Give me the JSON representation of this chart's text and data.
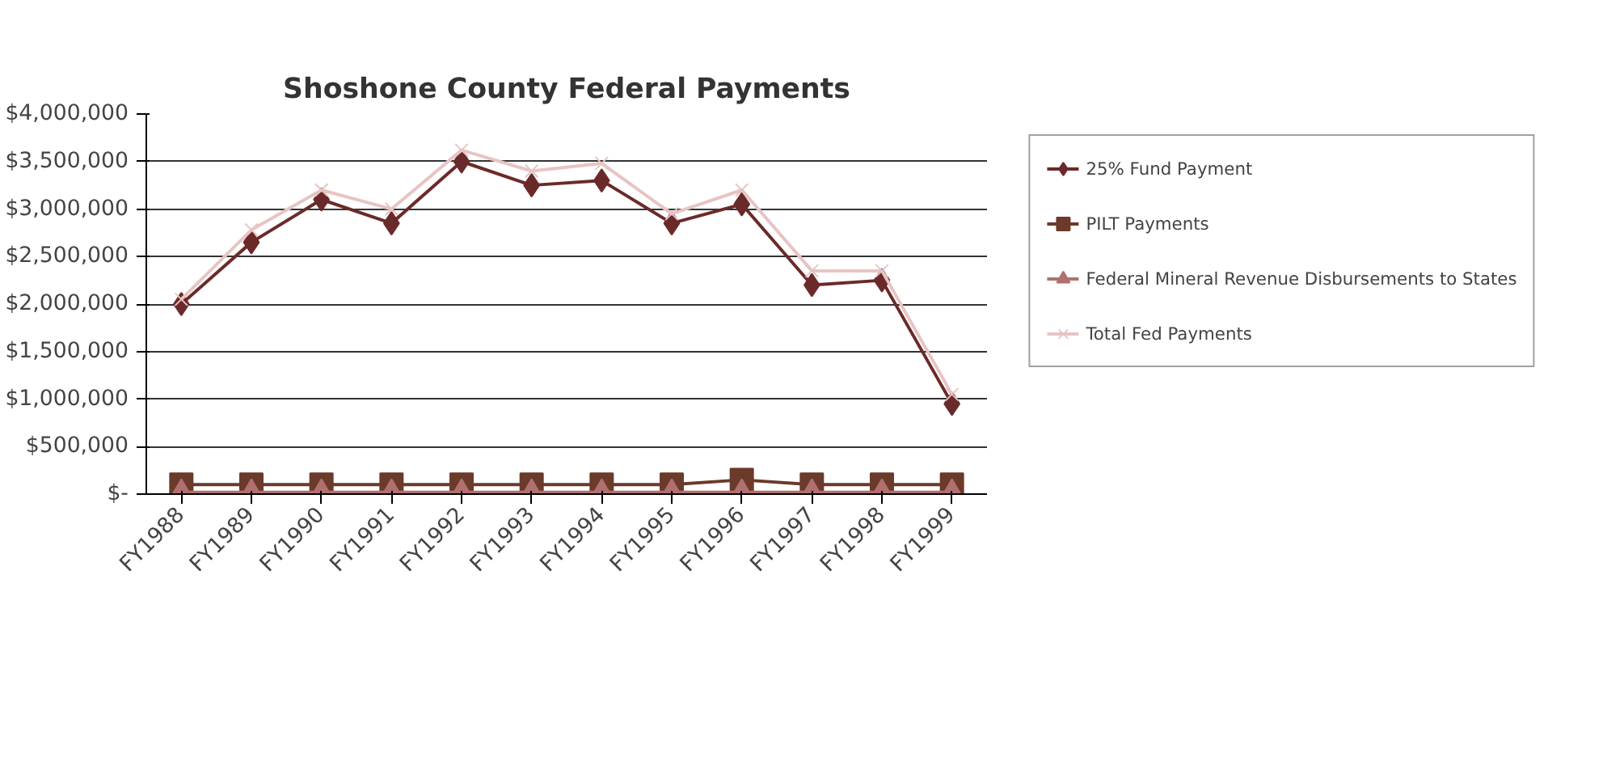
{
  "chart_data": {
    "type": "line",
    "title": "Shoshone County Federal Payments",
    "categories": [
      "FY1988",
      "FY1989",
      "FY1990",
      "FY1991",
      "FY1992",
      "FY1993",
      "FY1994",
      "FY1995",
      "FY1996",
      "FY1997",
      "FY1998",
      "FY1999"
    ],
    "series": [
      {
        "name": "25% Fund Payment",
        "color": "#6b2a2a",
        "marker": "diamond",
        "values": [
          2000000,
          2650000,
          3100000,
          2850000,
          3500000,
          3250000,
          3300000,
          2850000,
          3050000,
          2200000,
          2250000,
          950000
        ]
      },
      {
        "name": "PILT Payments",
        "color": "#6b3a2a",
        "marker": "square",
        "values": [
          100000,
          100000,
          100000,
          100000,
          100000,
          100000,
          100000,
          100000,
          150000,
          100000,
          100000,
          100000
        ]
      },
      {
        "name": "Federal Mineral Revenue Disbursements to States",
        "color": "#b07070",
        "marker": "triangle",
        "values": [
          20000,
          20000,
          20000,
          20000,
          20000,
          20000,
          20000,
          20000,
          20000,
          20000,
          20000,
          20000
        ]
      },
      {
        "name": "Total Fed Payments",
        "color": "#e8c4c4",
        "marker": "cross",
        "values": [
          2050000,
          2780000,
          3200000,
          3000000,
          3620000,
          3400000,
          3480000,
          2950000,
          3200000,
          2350000,
          2350000,
          1050000
        ]
      }
    ],
    "ylim": [
      0,
      4000000
    ],
    "yticks": [
      {
        "value": 0,
        "label": "$-"
      },
      {
        "value": 500000,
        "label": "$500,000"
      },
      {
        "value": 1000000,
        "label": "$1,000,000"
      },
      {
        "value": 1500000,
        "label": "$1,500,000"
      },
      {
        "value": 2000000,
        "label": "$2,000,000"
      },
      {
        "value": 2500000,
        "label": "$2,500,000"
      },
      {
        "value": 3000000,
        "label": "$3,000,000"
      },
      {
        "value": 3500000,
        "label": "$3,500,000"
      },
      {
        "value": 4000000,
        "label": "$4,000,000"
      }
    ],
    "grid": "y",
    "legend": "right",
    "line_style": "solid"
  }
}
